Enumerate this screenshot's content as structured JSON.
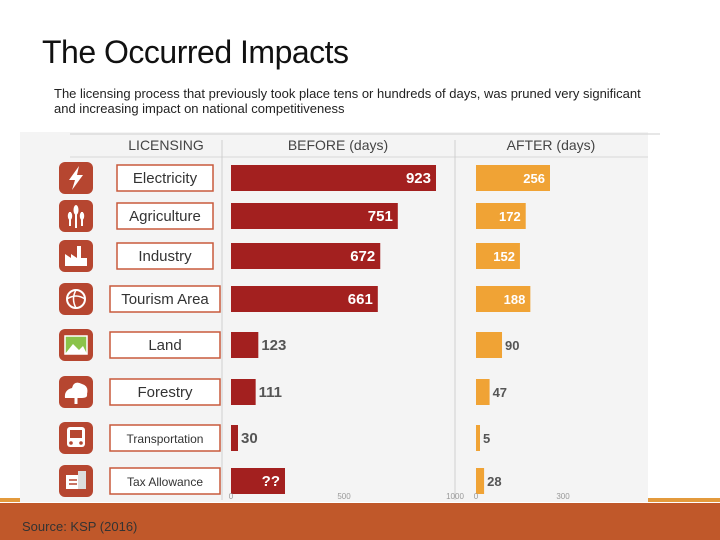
{
  "slide": {
    "title": "The Occurred Impacts",
    "subtitle": "The licensing process that previously took place tens or hundreds of days, was pruned very significant and increasing impact on national competitiveness",
    "source": "Source: KSP (2016)"
  },
  "colors": {
    "before": "#a3201f",
    "after": "#f0a335",
    "iconBox": "#b64630",
    "labelBorder": "#c85a3c",
    "footer": "#c0582a"
  },
  "chart_data": {
    "type": "bar",
    "title": "",
    "headers": {
      "category": "LICENSING",
      "before": "BEFORE (days)",
      "after": "AFTER (days)"
    },
    "categories": [
      "Electricity",
      "Agriculture",
      "Industry",
      "Tourism Area",
      "Land",
      "Forestry",
      "Transportation",
      "Tax Allowance"
    ],
    "icons": [
      "lightning-icon",
      "wheat-icon",
      "factory-icon",
      "tourism-icon",
      "land-icon",
      "tree-icon",
      "bus-icon",
      "tax-icon"
    ],
    "series": [
      {
        "name": "BEFORE (days)",
        "values": [
          923,
          751,
          672,
          661,
          123,
          111,
          30,
          null
        ],
        "labels": [
          "923",
          "751",
          "672",
          "661",
          "123",
          "111",
          "30",
          "??"
        ]
      },
      {
        "name": "AFTER (days)",
        "values": [
          256,
          172,
          152,
          188,
          90,
          47,
          5,
          28
        ],
        "labels": [
          "256",
          "172",
          "152",
          "188",
          "90",
          "47",
          "5",
          "28"
        ]
      }
    ],
    "before_axis": {
      "range": [
        0,
        1000
      ],
      "ticks": [
        "0",
        "500",
        "1000"
      ]
    },
    "after_axis": {
      "range": [
        0,
        300
      ],
      "ticks": [
        "0",
        "300"
      ]
    }
  }
}
